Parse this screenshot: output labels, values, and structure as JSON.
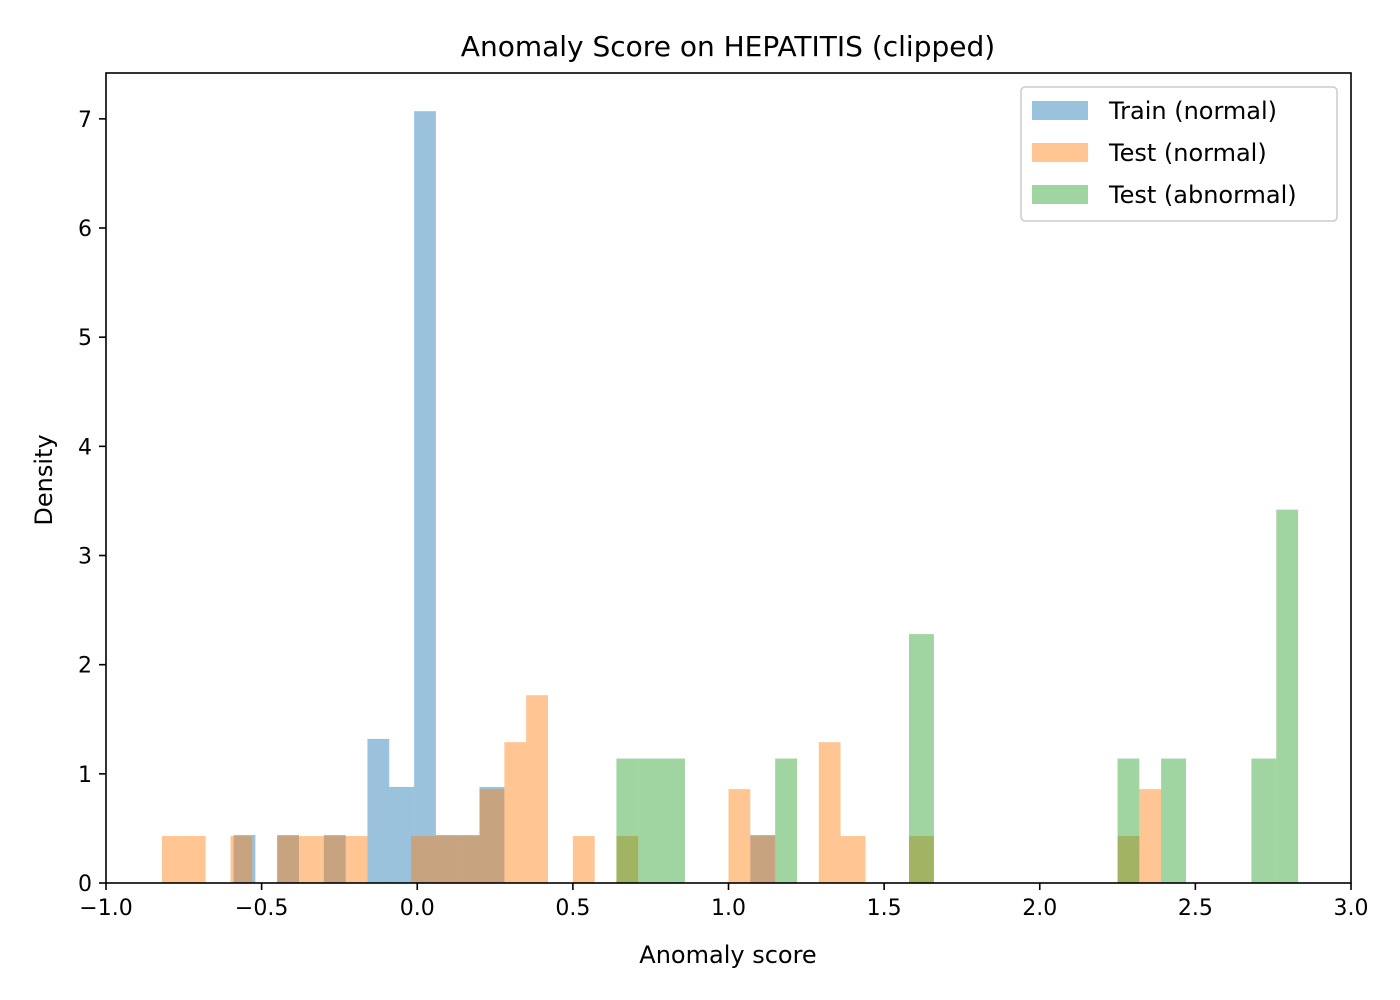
{
  "chart_data": {
    "type": "bar",
    "subtype": "overlapping-histogram",
    "title": "Anomaly Score on HEPATITIS (clipped)",
    "xlabel": "Anomaly score",
    "ylabel": "Density",
    "xlim": [
      -1.0,
      3.0
    ],
    "ylim": [
      0,
      7.42
    ],
    "x_ticks": [
      "−1.0",
      "−0.5",
      "0.0",
      "0.5",
      "1.0",
      "1.5",
      "2.0",
      "2.5",
      "3.0"
    ],
    "x_tick_values": [
      -1.0,
      -0.5,
      0.0,
      0.5,
      1.0,
      1.5,
      2.0,
      2.5,
      3.0
    ],
    "y_ticks": [
      "0",
      "1",
      "2",
      "3",
      "4",
      "5",
      "6",
      "7"
    ],
    "y_tick_values": [
      0,
      1,
      2,
      3,
      4,
      5,
      6,
      7
    ],
    "grid": false,
    "legend_position": "top-right",
    "bar_opacity": 0.45,
    "series": [
      {
        "name": "Train (normal)",
        "color": "#1f77b4",
        "bins": [
          {
            "x0": -0.59,
            "x1": -0.52,
            "y": 0.44
          },
          {
            "x0": -0.45,
            "x1": -0.38,
            "y": 0.44
          },
          {
            "x0": -0.3,
            "x1": -0.23,
            "y": 0.44
          },
          {
            "x0": -0.16,
            "x1": -0.09,
            "y": 1.32
          },
          {
            "x0": -0.09,
            "x1": -0.01,
            "y": 0.88
          },
          {
            "x0": -0.01,
            "x1": 0.06,
            "y": 7.07
          },
          {
            "x0": 0.06,
            "x1": 0.13,
            "y": 0.44
          },
          {
            "x0": 0.13,
            "x1": 0.2,
            "y": 0.44
          },
          {
            "x0": 0.2,
            "x1": 0.28,
            "y": 0.88
          },
          {
            "x0": 1.07,
            "x1": 1.15,
            "y": 0.44
          }
        ]
      },
      {
        "name": "Test (normal)",
        "color": "#ff7f0e",
        "bins": [
          {
            "x0": -0.82,
            "x1": -0.75,
            "y": 0.43
          },
          {
            "x0": -0.75,
            "x1": -0.68,
            "y": 0.43
          },
          {
            "x0": -0.6,
            "x1": -0.53,
            "y": 0.43
          },
          {
            "x0": -0.45,
            "x1": -0.38,
            "y": 0.43
          },
          {
            "x0": -0.38,
            "x1": -0.31,
            "y": 0.43
          },
          {
            "x0": -0.31,
            "x1": -0.24,
            "y": 0.43
          },
          {
            "x0": -0.24,
            "x1": -0.16,
            "y": 0.43
          },
          {
            "x0": -0.02,
            "x1": 0.06,
            "y": 0.43
          },
          {
            "x0": 0.06,
            "x1": 0.13,
            "y": 0.43
          },
          {
            "x0": 0.13,
            "x1": 0.2,
            "y": 0.43
          },
          {
            "x0": 0.2,
            "x1": 0.28,
            "y": 0.86
          },
          {
            "x0": 0.28,
            "x1": 0.35,
            "y": 1.29
          },
          {
            "x0": 0.35,
            "x1": 0.42,
            "y": 1.72
          },
          {
            "x0": 0.5,
            "x1": 0.57,
            "y": 0.43
          },
          {
            "x0": 0.64,
            "x1": 0.71,
            "y": 0.43
          },
          {
            "x0": 1.0,
            "x1": 1.07,
            "y": 0.86
          },
          {
            "x0": 1.07,
            "x1": 1.15,
            "y": 0.43
          },
          {
            "x0": 1.29,
            "x1": 1.36,
            "y": 1.29
          },
          {
            "x0": 1.36,
            "x1": 1.44,
            "y": 0.43
          },
          {
            "x0": 1.58,
            "x1": 1.66,
            "y": 0.43
          },
          {
            "x0": 2.25,
            "x1": 2.32,
            "y": 0.43
          },
          {
            "x0": 2.32,
            "x1": 2.39,
            "y": 0.86
          }
        ]
      },
      {
        "name": "Test (abnormal)",
        "color": "#2ca02c",
        "bins": [
          {
            "x0": 0.64,
            "x1": 0.71,
            "y": 1.14
          },
          {
            "x0": 0.71,
            "x1": 0.78,
            "y": 1.14
          },
          {
            "x0": 0.78,
            "x1": 0.86,
            "y": 1.14
          },
          {
            "x0": 1.15,
            "x1": 1.22,
            "y": 1.14
          },
          {
            "x0": 1.58,
            "x1": 1.66,
            "y": 2.28
          },
          {
            "x0": 2.25,
            "x1": 2.32,
            "y": 1.14
          },
          {
            "x0": 2.39,
            "x1": 2.47,
            "y": 1.14
          },
          {
            "x0": 2.68,
            "x1": 2.76,
            "y": 1.14
          },
          {
            "x0": 2.76,
            "x1": 2.83,
            "y": 3.42
          }
        ]
      }
    ]
  }
}
